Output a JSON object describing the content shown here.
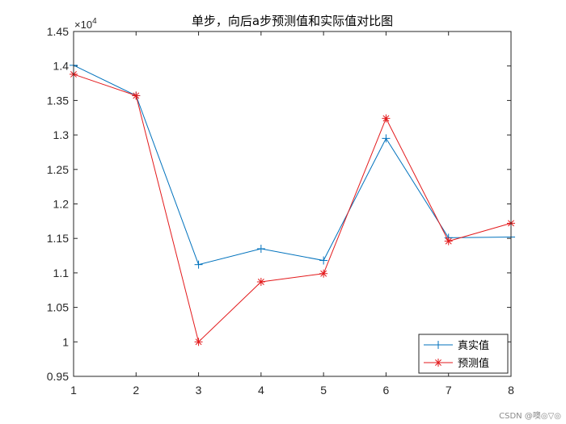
{
  "chart_data": {
    "type": "line",
    "title": "单步，向后a步预测值和实际值对比图",
    "x": [
      1,
      2,
      3,
      4,
      5,
      6,
      7,
      8
    ],
    "xlim": [
      1,
      8
    ],
    "ylim": [
      9500,
      14500
    ],
    "y_tick_values": [
      0.95,
      1,
      1.05,
      1.1,
      1.15,
      1.2,
      1.25,
      1.3,
      1.35,
      1.4,
      1.45
    ],
    "y_tick_labels": [
      "0.95",
      "1",
      "1.05",
      "1.1",
      "1.15",
      "1.2",
      "1.25",
      "1.3",
      "1.35",
      "1.4",
      "1.45"
    ],
    "x_tick_labels": [
      "1",
      "2",
      "3",
      "4",
      "5",
      "6",
      "7",
      "8"
    ],
    "y_exponent": "×10",
    "y_exponent_power": "4",
    "series": [
      {
        "name": "真实值",
        "color": "#0072bd",
        "marker": "plus",
        "values": [
          14010,
          13570,
          11120,
          11350,
          11180,
          12950,
          11510,
          11520
        ]
      },
      {
        "name": "预测值",
        "color": "#e31a1c",
        "marker": "asterisk",
        "values": [
          13880,
          13570,
          10000,
          10870,
          10990,
          13240,
          11460,
          11720
        ]
      }
    ],
    "legend_position": "bottom-right",
    "grid": false
  },
  "watermark": "CSDN @噢◎▽◎"
}
